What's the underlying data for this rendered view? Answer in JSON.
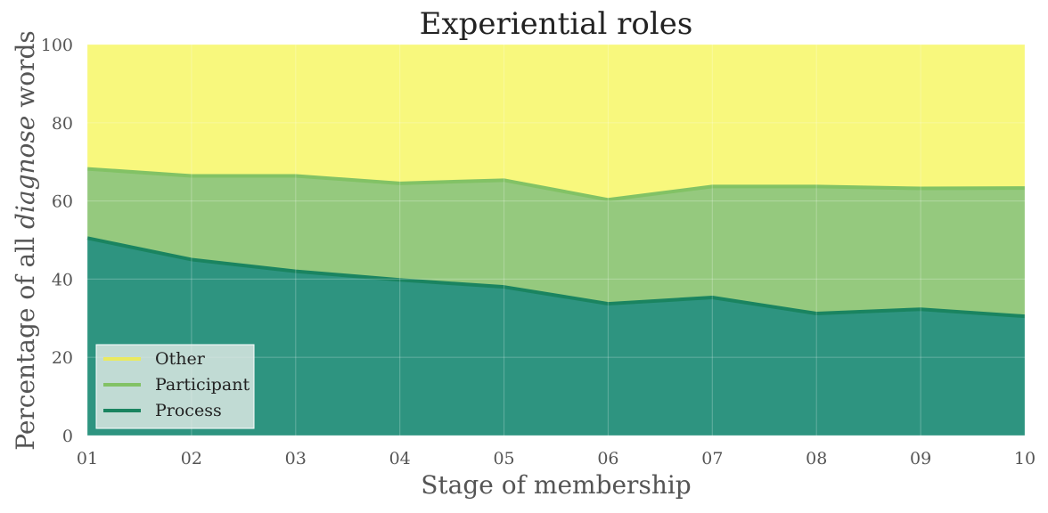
{
  "chart_data": {
    "type": "area",
    "stacked": true,
    "title": "Experiential roles",
    "xlabel": "Stage of membership",
    "ylabel_parts": [
      {
        "text": "Percentage of all ",
        "italic": false
      },
      {
        "text": "diagnose",
        "italic": true
      },
      {
        "text": " words",
        "italic": false
      }
    ],
    "categories": [
      "01",
      "02",
      "03",
      "04",
      "05",
      "06",
      "07",
      "08",
      "09",
      "10"
    ],
    "ylim": [
      0,
      100
    ],
    "yticks": [
      "0",
      "20",
      "40",
      "60",
      "80",
      "100"
    ],
    "grid": true,
    "legend_position": "lower-left",
    "series": [
      {
        "name": "Process",
        "values": [
          50.5,
          45.0,
          42.0,
          39.8,
          38.0,
          33.7,
          35.3,
          31.2,
          32.3,
          30.5
        ],
        "fill_color": "#2e9480",
        "line_color": "#1a8460"
      },
      {
        "name": "Participant",
        "values": [
          17.7,
          21.4,
          24.4,
          24.7,
          27.3,
          26.6,
          28.4,
          32.5,
          30.9,
          32.8
        ],
        "fill_color": "#95c97e",
        "line_color": "#82c265"
      },
      {
        "name": "Other",
        "values": [
          31.8,
          33.6,
          33.6,
          35.5,
          34.7,
          39.7,
          36.3,
          36.3,
          36.8,
          36.7
        ],
        "fill_color": "#f8f87d",
        "line_color": "#eaea60"
      }
    ],
    "legend_order": [
      "Other",
      "Participant",
      "Process"
    ]
  }
}
